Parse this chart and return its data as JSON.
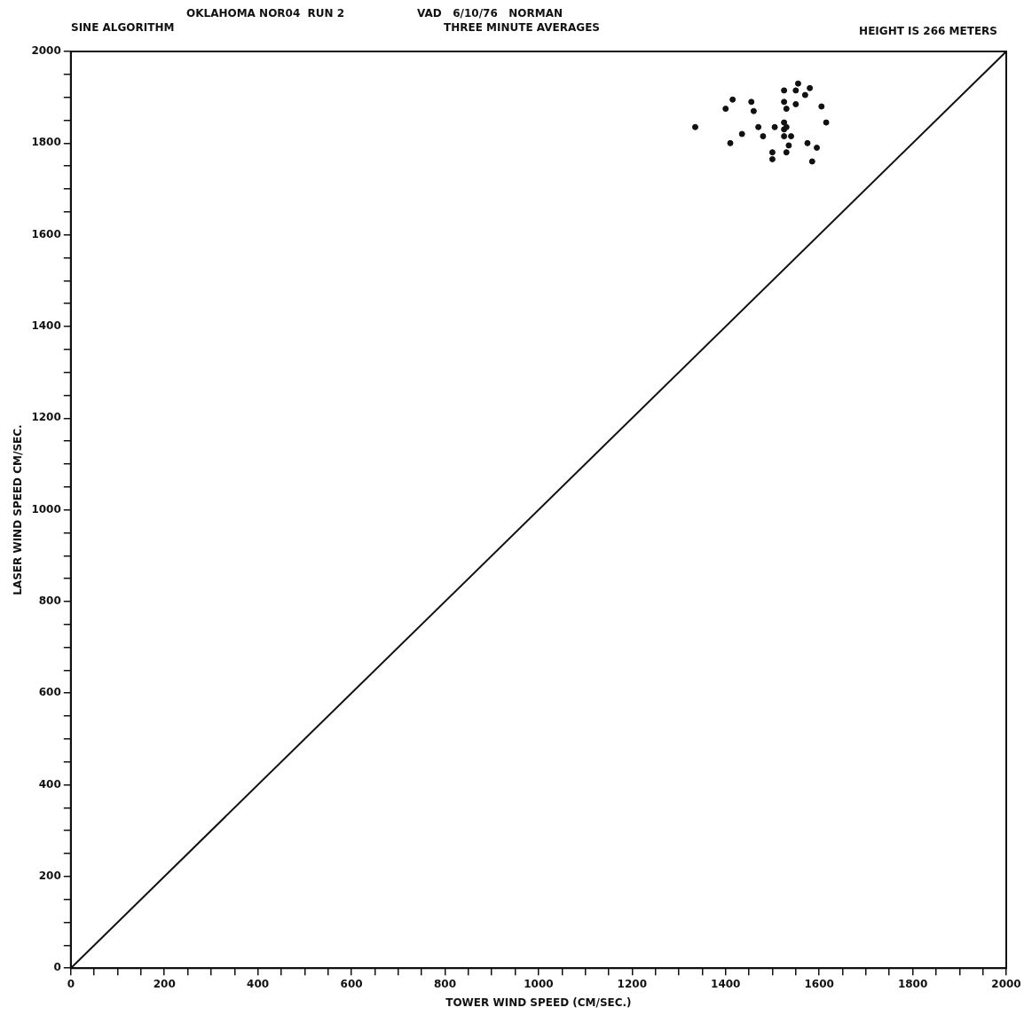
{
  "chart_data": {
    "type": "scatter",
    "title": "OKLAHOMA NOR04  RUN 2",
    "subtitle": "THREE MINUTE AVERAGES",
    "annotations": [
      "SINE ALGORITHM",
      "VAD   6/10/76   NORMAN",
      "HEIGHT IS 266 METERS"
    ],
    "xlabel": "TOWER WIND SPEED (CM/SEC.)",
    "ylabel": "LASER WIND SPEED CM/SEC.",
    "xlim": [
      0,
      2000
    ],
    "ylim": [
      0,
      2000
    ],
    "xticks": [
      0,
      {
        "value": 50,
        "label": null
      },
      {
        "value": 100,
        "label": null
      },
      {
        "value": 150,
        "label": null
      },
      200,
      {
        "value": 250,
        "label": null
      },
      {
        "value": 300,
        "label": null
      },
      {
        "value": 350,
        "label": null
      },
      400,
      {
        "value": 450,
        "label": null
      },
      {
        "value": 500,
        "label": null
      },
      {
        "value": 550,
        "label": null
      },
      600,
      {
        "value": 650,
        "label": null
      },
      {
        "value": 700,
        "label": null
      },
      {
        "value": 750,
        "label": null
      },
      800,
      {
        "value": 850,
        "label": null
      },
      {
        "value": 900,
        "label": null
      },
      {
        "value": 950,
        "label": null
      },
      1000,
      {
        "value": 1050,
        "label": null
      },
      {
        "value": 1100,
        "label": null
      },
      {
        "value": 1150,
        "label": null
      },
      1200,
      {
        "value": 1250,
        "label": null
      },
      {
        "value": 1300,
        "label": null
      },
      {
        "value": 1350,
        "label": null
      },
      1400,
      {
        "value": 1450,
        "label": null
      },
      {
        "value": 1500,
        "label": null
      },
      {
        "value": 1550,
        "label": null
      },
      1600,
      {
        "value": 1650,
        "label": null
      },
      {
        "value": 1700,
        "label": null
      },
      {
        "value": 1750,
        "label": null
      },
      1800,
      {
        "value": 1850,
        "label": null
      },
      {
        "value": 1900,
        "label": null
      },
      {
        "value": 1950,
        "label": null
      },
      2000
    ],
    "yticks": [
      0,
      {
        "value": 50,
        "label": null
      },
      {
        "value": 100,
        "label": null
      },
      {
        "value": 150,
        "label": null
      },
      200,
      {
        "value": 250,
        "label": null
      },
      {
        "value": 300,
        "label": null
      },
      {
        "value": 350,
        "label": null
      },
      400,
      {
        "value": 450,
        "label": null
      },
      {
        "value": 500,
        "label": null
      },
      {
        "value": 550,
        "label": null
      },
      600,
      {
        "value": 650,
        "label": null
      },
      {
        "value": 700,
        "label": null
      },
      {
        "value": 750,
        "label": null
      },
      800,
      {
        "value": 850,
        "label": null
      },
      {
        "value": 900,
        "label": null
      },
      {
        "value": 950,
        "label": null
      },
      1000,
      {
        "value": 1050,
        "label": null
      },
      {
        "value": 1100,
        "label": null
      },
      {
        "value": 1150,
        "label": null
      },
      1200,
      {
        "value": 1250,
        "label": null
      },
      {
        "value": 1300,
        "label": null
      },
      {
        "value": 1350,
        "label": null
      },
      1400,
      {
        "value": 1450,
        "label": null
      },
      {
        "value": 1500,
        "label": null
      },
      {
        "value": 1550,
        "label": null
      },
      1600,
      {
        "value": 1650,
        "label": null
      },
      {
        "value": 1700,
        "label": null
      },
      {
        "value": 1750,
        "label": null
      },
      1800,
      {
        "value": 1850,
        "label": null
      },
      {
        "value": 1900,
        "label": null
      },
      {
        "value": 1950,
        "label": null
      },
      2000
    ],
    "grid": false,
    "marker": "circle",
    "series": [
      {
        "color": "#111111",
        "x": [
          1335,
          1415,
          1400,
          1455,
          1460,
          1410,
          1435,
          1470,
          1480,
          1505,
          1500,
          1500,
          1525,
          1525,
          1530,
          1525,
          1525,
          1530,
          1525,
          1540,
          1535,
          1530,
          1555,
          1550,
          1550,
          1580,
          1570,
          1605,
          1615,
          1575,
          1595,
          1585
        ],
        "values": [
          1835,
          1895,
          1875,
          1890,
          1870,
          1800,
          1820,
          1835,
          1815,
          1835,
          1780,
          1765,
          1915,
          1890,
          1875,
          1845,
          1830,
          1835,
          1815,
          1815,
          1795,
          1780,
          1930,
          1915,
          1885,
          1920,
          1905,
          1880,
          1845,
          1800,
          1790,
          1760
        ]
      },
      {
        "type": "line",
        "color": "#111111",
        "x": [
          0,
          2000
        ],
        "values": [
          0,
          2000
        ],
        "line_style": "solid",
        "marker": "none"
      }
    ]
  }
}
